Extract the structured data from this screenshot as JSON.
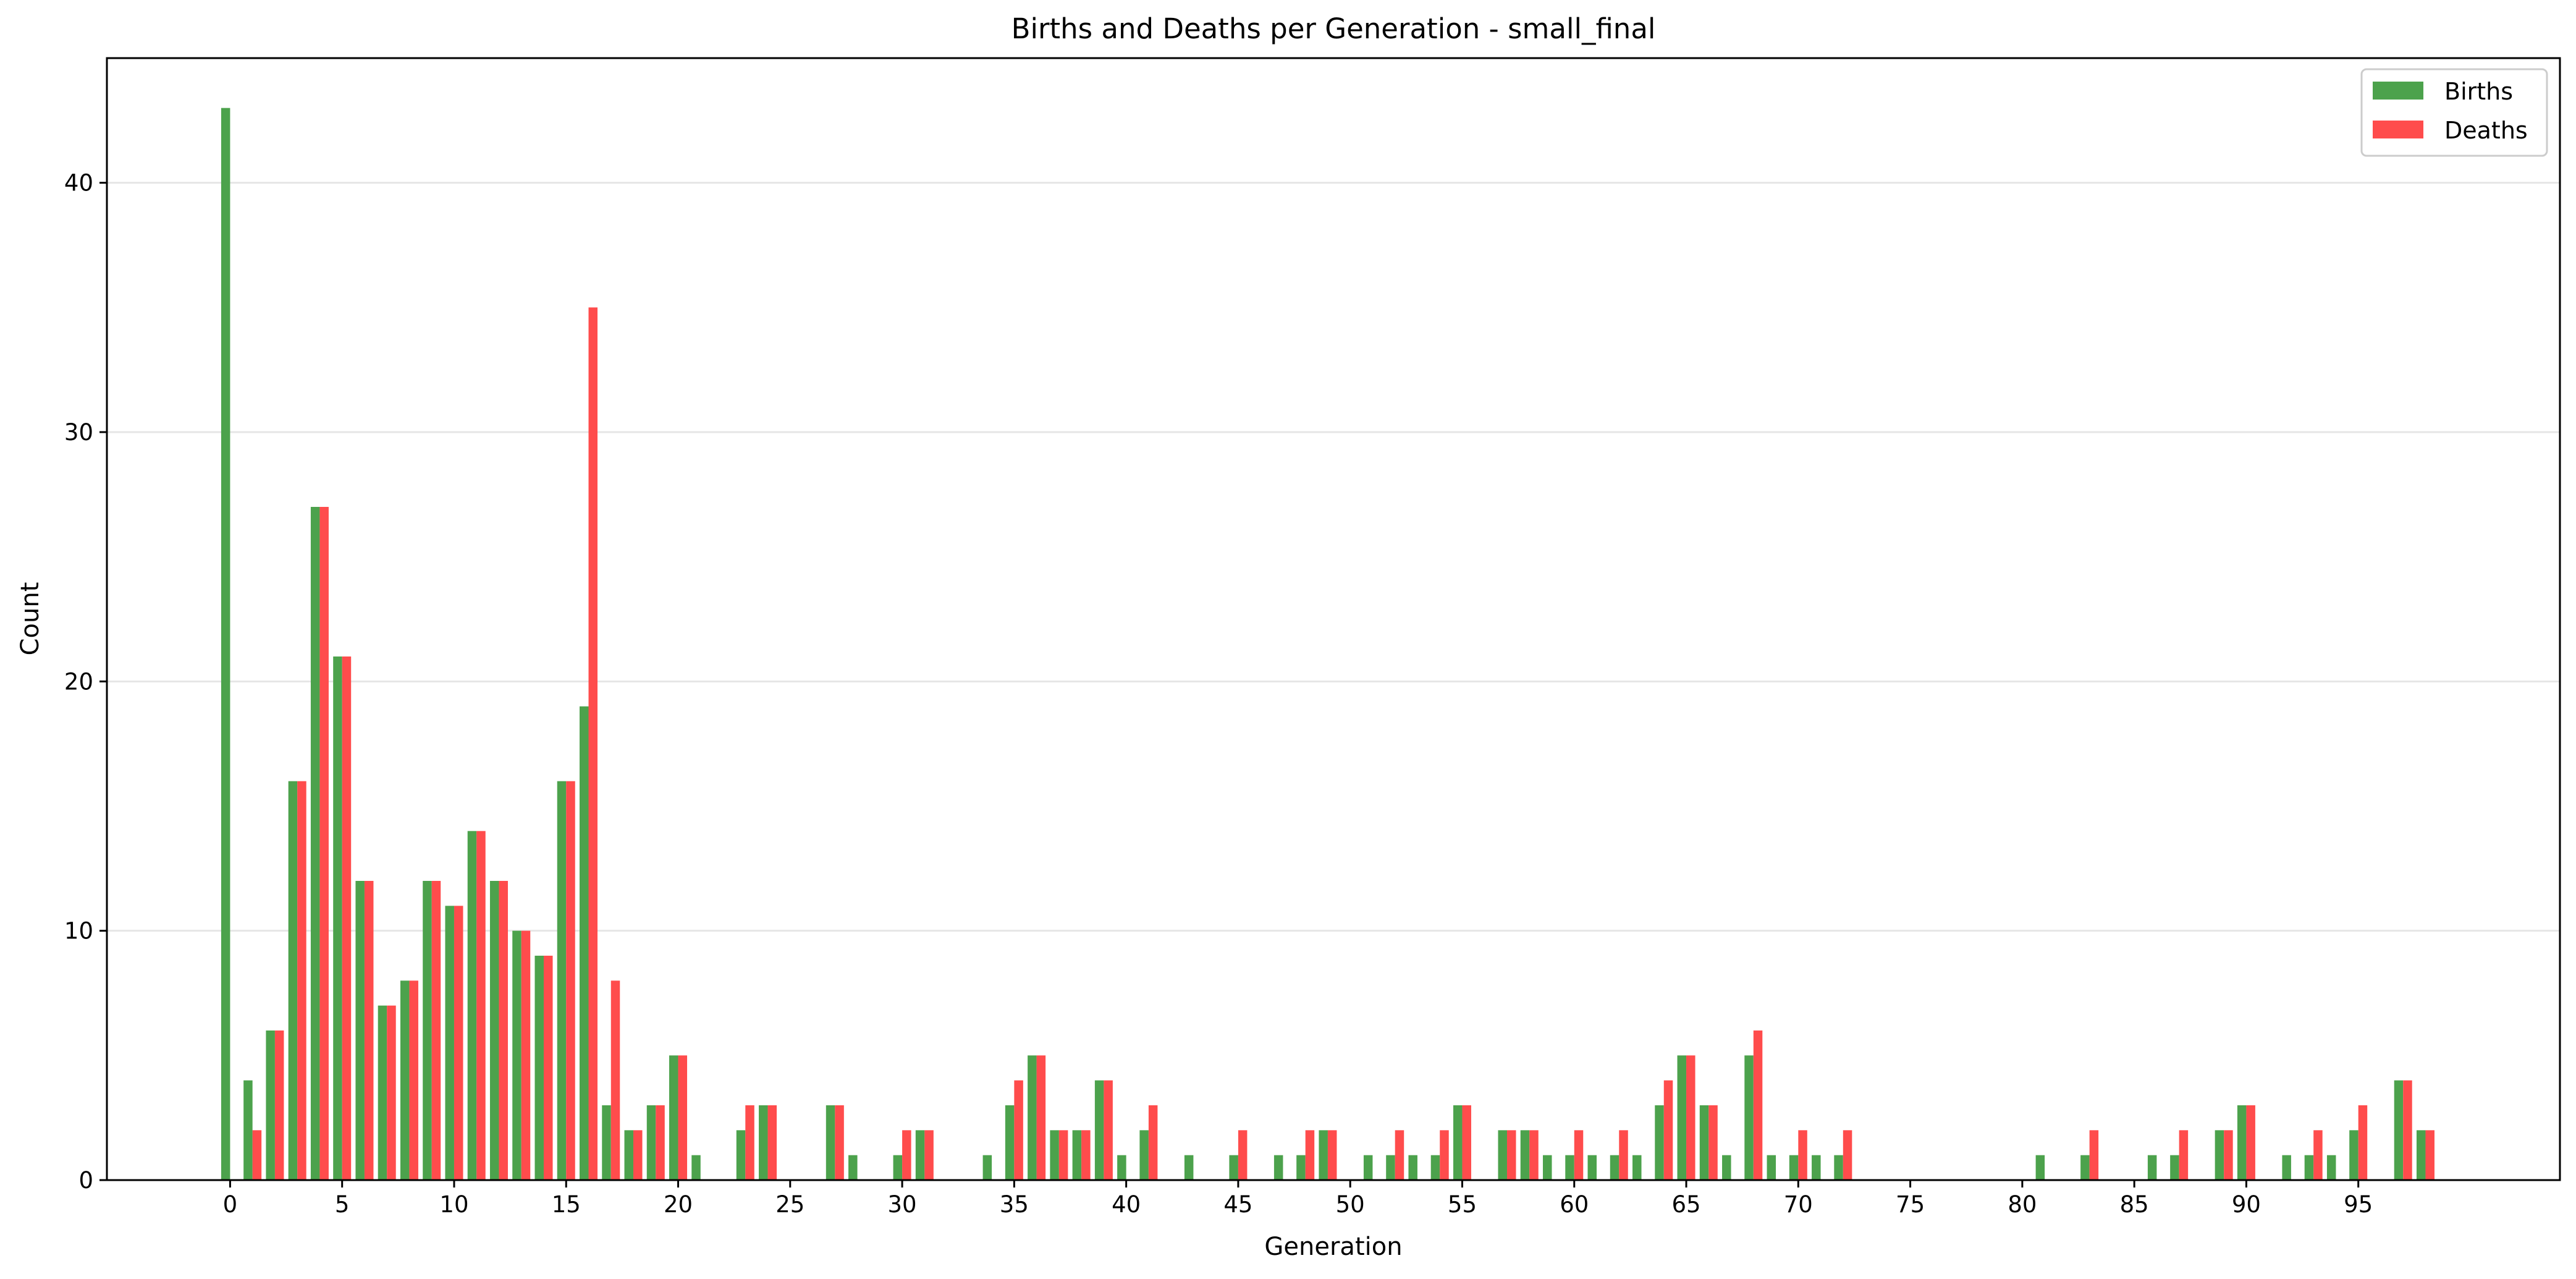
{
  "chart_data": {
    "type": "bar",
    "title": "Births and Deaths per Generation - small_final",
    "xlabel": "Generation",
    "ylabel": "Count",
    "xlim": [
      -5.5,
      104
    ],
    "ylim": [
      0,
      45
    ],
    "x_ticks": [
      0,
      5,
      10,
      15,
      20,
      25,
      30,
      35,
      40,
      45,
      50,
      55,
      60,
      65,
      70,
      75,
      80,
      85,
      90,
      95
    ],
    "y_ticks": [
      0,
      10,
      20,
      30,
      40
    ],
    "grid": "y",
    "legend_position": "top-right",
    "x": [
      0,
      1,
      2,
      3,
      4,
      5,
      6,
      7,
      8,
      9,
      10,
      11,
      12,
      13,
      14,
      15,
      16,
      17,
      18,
      19,
      20,
      21,
      22,
      23,
      24,
      25,
      26,
      27,
      28,
      29,
      30,
      31,
      32,
      33,
      34,
      35,
      36,
      37,
      38,
      39,
      40,
      41,
      42,
      43,
      44,
      45,
      46,
      47,
      48,
      49,
      50,
      51,
      52,
      53,
      54,
      55,
      56,
      57,
      58,
      59,
      60,
      61,
      62,
      63,
      64,
      65,
      66,
      67,
      68,
      69,
      70,
      71,
      72,
      73,
      74,
      75,
      76,
      77,
      78,
      79,
      80,
      81,
      82,
      83,
      84,
      85,
      86,
      87,
      88,
      89,
      90,
      91,
      92,
      93,
      94,
      95,
      96,
      97,
      98
    ],
    "series": [
      {
        "name": "Births",
        "color": "#4ca24c",
        "values": [
          43,
          4,
          6,
          16,
          27,
          21,
          12,
          7,
          8,
          12,
          11,
          14,
          12,
          10,
          9,
          16,
          19,
          3,
          2,
          3,
          5,
          1,
          0,
          2,
          3,
          0,
          0,
          3,
          1,
          0,
          1,
          2,
          0,
          0,
          1,
          3,
          5,
          2,
          2,
          4,
          1,
          2,
          0,
          1,
          0,
          1,
          0,
          1,
          1,
          2,
          0,
          1,
          1,
          1,
          1,
          3,
          0,
          2,
          2,
          1,
          1,
          1,
          1,
          1,
          3,
          5,
          3,
          1,
          5,
          1,
          1,
          1,
          1,
          0,
          0,
          0,
          0,
          0,
          0,
          0,
          0,
          1,
          0,
          1,
          0,
          0,
          1,
          1,
          0,
          2,
          3,
          0,
          1,
          1,
          1,
          2,
          0,
          4,
          2
        ]
      },
      {
        "name": "Deaths",
        "color": "#ff4c4c",
        "values": [
          0,
          2,
          6,
          16,
          27,
          21,
          12,
          7,
          8,
          12,
          11,
          14,
          12,
          10,
          9,
          16,
          35,
          8,
          2,
          3,
          5,
          0,
          0,
          3,
          3,
          0,
          0,
          3,
          0,
          0,
          2,
          2,
          0,
          0,
          0,
          4,
          5,
          2,
          2,
          4,
          0,
          3,
          0,
          0,
          0,
          2,
          0,
          0,
          2,
          2,
          0,
          0,
          2,
          0,
          2,
          3,
          0,
          2,
          2,
          0,
          2,
          0,
          2,
          0,
          4,
          5,
          3,
          0,
          6,
          0,
          2,
          0,
          2,
          0,
          0,
          0,
          0,
          0,
          0,
          0,
          0,
          0,
          0,
          2,
          0,
          0,
          0,
          2,
          0,
          2,
          3,
          0,
          0,
          2,
          0,
          3,
          0,
          4,
          2
        ]
      }
    ]
  }
}
